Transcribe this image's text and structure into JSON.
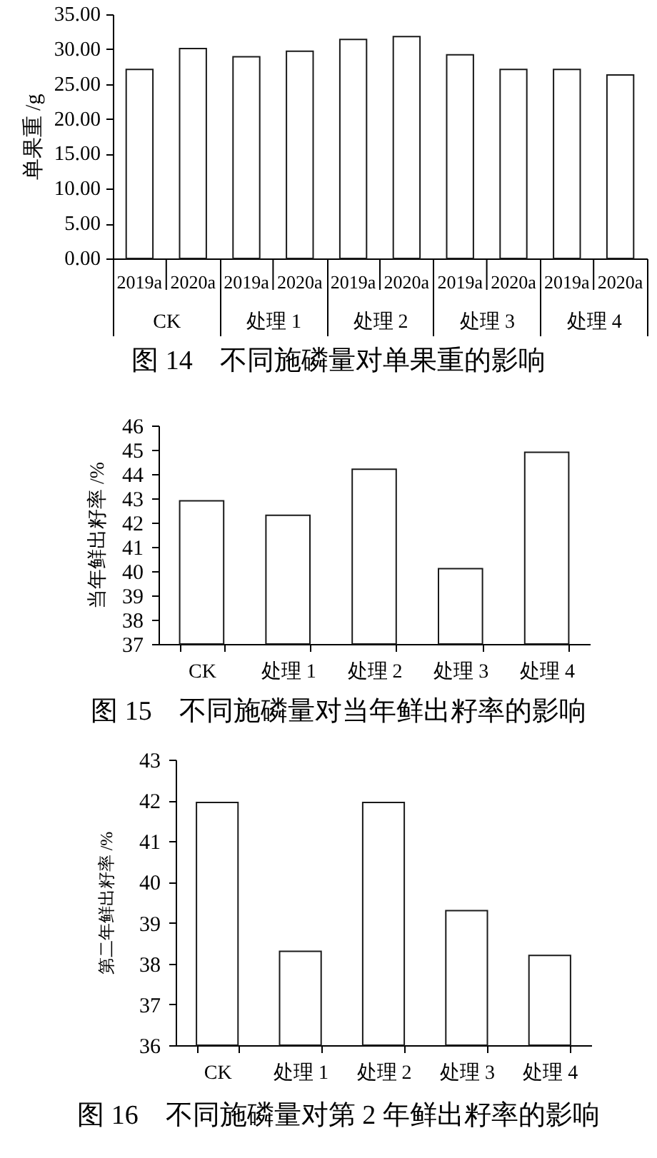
{
  "chart_data": [
    {
      "type": "bar",
      "title": "图 14　不同施磷量对单果重的影响",
      "ylabel": "单果重 /g",
      "categories": [
        "CK",
        "处理 1",
        "处理 2",
        "处理 3",
        "处理 4"
      ],
      "series": [
        {
          "name": "2019a",
          "color": "#ffffff",
          "values": [
            27.1,
            28.9,
            31.4,
            29.2,
            27.1
          ]
        },
        {
          "name": "2020a",
          "color": "#ffffff",
          "values": [
            30.1,
            29.7,
            31.8,
            27.1,
            26.3
          ]
        }
      ],
      "ylim": [
        0,
        35
      ],
      "yticks": [
        {
          "value": 0,
          "label": "0.00"
        },
        {
          "value": 5,
          "label": "5.00"
        },
        {
          "value": 10,
          "label": "10.00"
        },
        {
          "value": 15,
          "label": "15.00"
        },
        {
          "value": 20,
          "label": "20.00"
        },
        {
          "value": 25,
          "label": "25.00"
        },
        {
          "value": 30,
          "label": "30.00"
        },
        {
          "value": 35,
          "label": "35.00"
        }
      ]
    },
    {
      "type": "bar",
      "title": "图 15　不同施磷量对当年鲜出籽率的影响",
      "ylabel": "当年鲜出籽率 /%",
      "categories": [
        "CK",
        "处理 1",
        "处理 2",
        "处理 3",
        "处理 4"
      ],
      "values": [
        42.9,
        42.3,
        44.2,
        40.1,
        44.9
      ],
      "color": "#ffffff",
      "ylim": [
        37,
        46
      ],
      "yticks": [
        37,
        38,
        39,
        40,
        41,
        42,
        43,
        44,
        45,
        46
      ]
    },
    {
      "type": "bar",
      "title": "图 16　不同施磷量对第 2 年鲜出籽率的影响",
      "ylabel": "第二年鲜出籽率 /%",
      "categories": [
        "CK",
        "处理 1",
        "处理 2",
        "处理 3",
        "处理 4"
      ],
      "values": [
        41.95,
        38.3,
        41.95,
        39.3,
        38.2
      ],
      "color": "#ffffff",
      "ylim": [
        36,
        43
      ],
      "yticks": [
        36,
        37,
        38,
        39,
        40,
        41,
        42,
        43
      ]
    }
  ]
}
